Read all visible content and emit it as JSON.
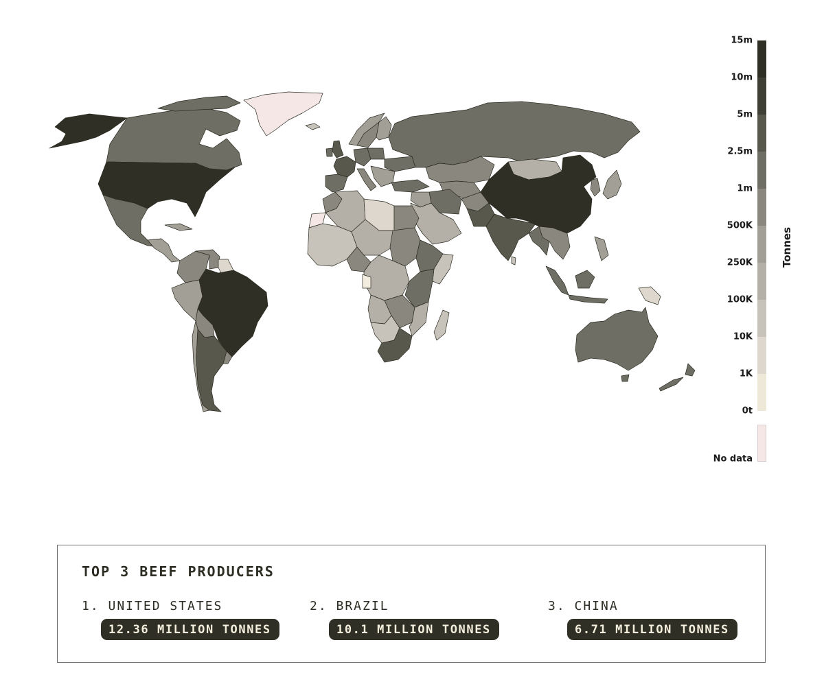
{
  "legend": {
    "unit": "Tonnes",
    "bins": [
      {
        "label": "15m",
        "color": "#2f2f25"
      },
      {
        "label": "10m",
        "color": "#3f3f35"
      },
      {
        "label": "5m",
        "color": "#58584d"
      },
      {
        "label": "2.5m",
        "color": "#6f6e64"
      },
      {
        "label": "1m",
        "color": "#8a887e"
      },
      {
        "label": "500K",
        "color": "#a29f96"
      },
      {
        "label": "250K",
        "color": "#b4b0a8"
      },
      {
        "label": "100K",
        "color": "#c7c2ba"
      },
      {
        "label": "10K",
        "color": "#ddd7cd"
      },
      {
        "label": "1K",
        "color": "#eee8d9"
      },
      {
        "label": "0t",
        "color": ""
      }
    ],
    "no_data_label": "No data",
    "no_data_color": "#f4e7e6"
  },
  "top_producers": {
    "title": "TOP 3 BEEF PRODUCERS",
    "items": [
      {
        "name": "1. UNITED STATES",
        "value": "12.36 MILLION TONNES"
      },
      {
        "name": "2. BRAZIL",
        "value": "10.1 MILLION TONNES"
      },
      {
        "name": "3. CHINA",
        "value": "6.71 MILLION TONNES"
      }
    ]
  }
}
